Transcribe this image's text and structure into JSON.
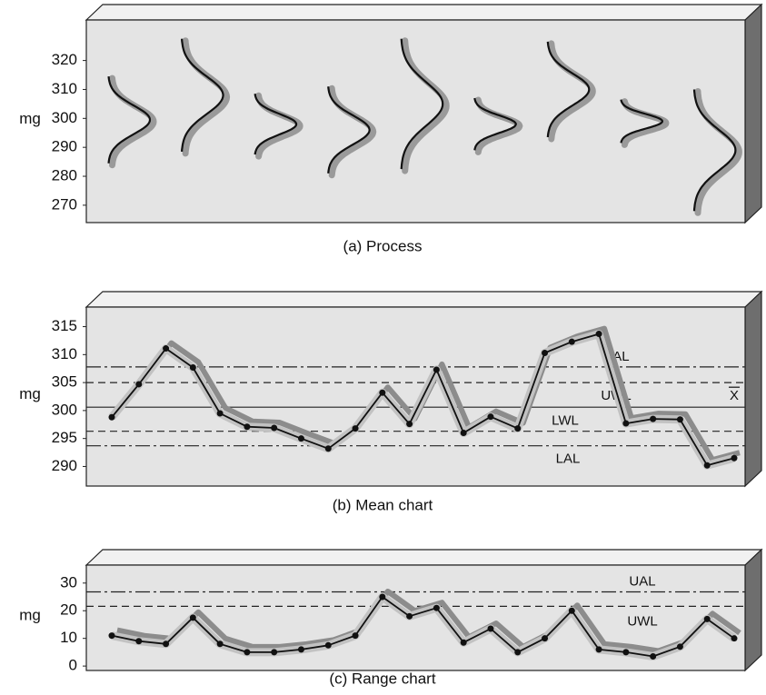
{
  "chart_data": [
    {
      "type": "distribution",
      "caption": "(a) Process",
      "ylabel": "mg",
      "ylim": [
        264,
        334
      ],
      "yticks": [
        270,
        280,
        290,
        300,
        310,
        320
      ],
      "means": [
        299.5,
        308,
        298,
        296,
        305,
        298,
        310,
        299,
        289
      ],
      "sds": [
        5,
        6.5,
        3.5,
        5,
        7.5,
        3,
        5.5,
        2.5,
        7
      ]
    },
    {
      "type": "line",
      "caption": "(b) Mean chart",
      "ylabel": "mg",
      "ylim": [
        286.5,
        318.5
      ],
      "yticks": [
        290,
        295,
        300,
        305,
        310,
        315
      ],
      "values": [
        298.8,
        304.7,
        311.1,
        307.7,
        299.5,
        297.1,
        296.9,
        295.0,
        293.2,
        296.8,
        303.2,
        297.6,
        307.3,
        296.0,
        298.9,
        296.8,
        310.3,
        312.3,
        313.7,
        297.7,
        298.5,
        298.4,
        290.2,
        291.5
      ],
      "refs": [
        {
          "label": "UAL",
          "value": 307.8,
          "style": "dash-dot"
        },
        {
          "label": "UWL",
          "value": 305.0,
          "style": "dashed"
        },
        {
          "label": "X",
          "value": 300.6,
          "style": "solid"
        },
        {
          "label": "LWL",
          "value": 296.3,
          "style": "dashed"
        },
        {
          "label": "LAL",
          "value": 293.7,
          "style": "dash-dot"
        }
      ]
    },
    {
      "type": "line",
      "caption": "(c) Range chart",
      "ylabel": "mg",
      "ylim": [
        -1.6,
        36.5
      ],
      "yticks": [
        0,
        10,
        20,
        30
      ],
      "values": [
        11,
        9,
        8,
        17.5,
        8,
        5,
        5,
        6,
        7.5,
        11,
        25,
        18,
        21,
        8.5,
        13.5,
        5,
        10,
        20,
        6,
        5,
        3.5,
        7,
        17,
        10
      ],
      "refs": [
        {
          "label": "UAL",
          "value": 26.8,
          "style": "dash-dot"
        },
        {
          "label": "UWL",
          "value": 21.6,
          "style": "dashed"
        }
      ]
    }
  ]
}
